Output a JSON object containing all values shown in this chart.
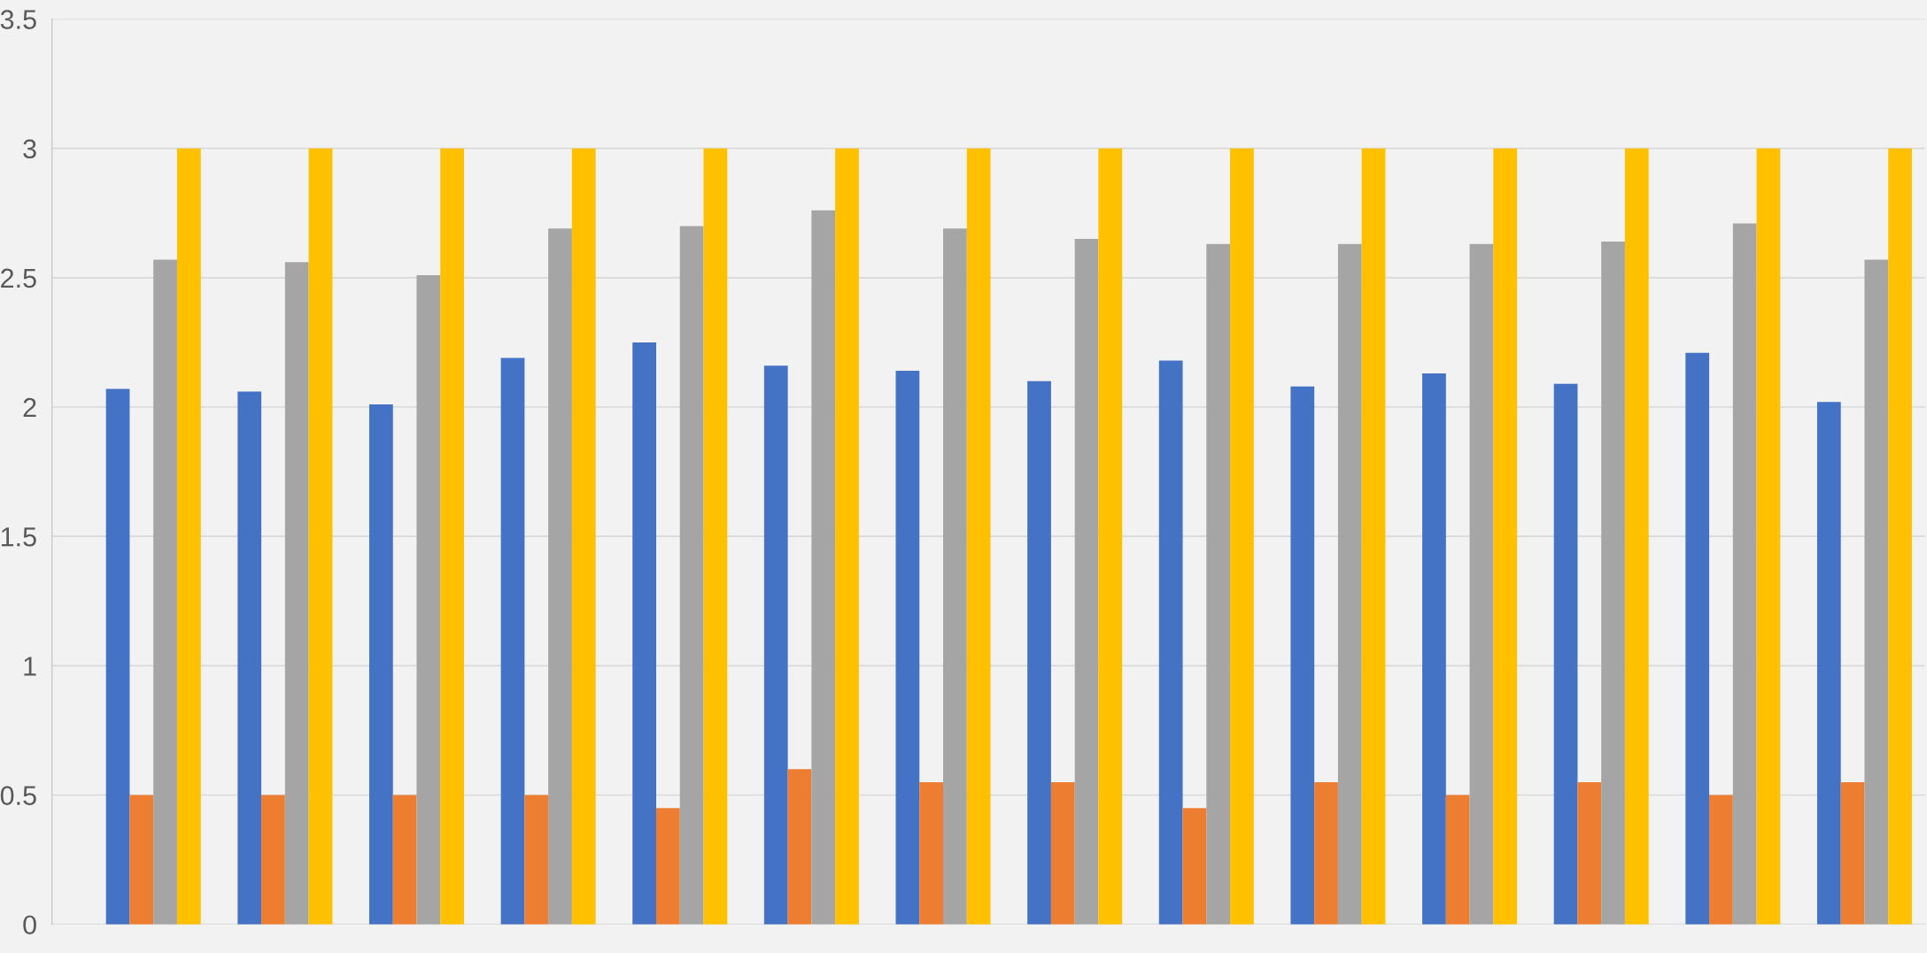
{
  "chart_data": {
    "type": "bar",
    "categories": [
      null,
      null,
      null,
      null,
      null,
      null,
      null,
      null,
      null,
      null,
      null,
      null,
      null,
      null
    ],
    "series": [
      {
        "color": "#4472c4",
        "values": [
          2.07,
          2.06,
          2.01,
          2.19,
          2.25,
          2.16,
          2.14,
          2.1,
          2.18,
          2.08,
          2.13,
          2.09,
          2.21,
          2.02
        ]
      },
      {
        "color": "#ed7d31",
        "values": [
          0.5,
          0.5,
          0.5,
          0.5,
          0.45,
          0.6,
          0.55,
          0.55,
          0.45,
          0.55,
          0.5,
          0.55,
          0.5,
          0.55
        ]
      },
      {
        "color": "#a5a5a5",
        "values": [
          2.57,
          2.56,
          2.51,
          2.69,
          2.7,
          2.76,
          2.69,
          2.65,
          2.63,
          2.63,
          2.63,
          2.64,
          2.71,
          2.57
        ]
      },
      {
        "color": "#ffc000",
        "values": [
          3,
          3,
          3,
          3,
          3,
          3,
          3,
          3,
          3,
          3,
          3,
          3,
          3,
          3
        ]
      }
    ],
    "ylim": [
      0,
      3.5
    ],
    "yticks": [
      0,
      0.5,
      1,
      1.5,
      2,
      2.5,
      3,
      3.5
    ],
    "grid": "y",
    "tick_labels": "y"
  }
}
